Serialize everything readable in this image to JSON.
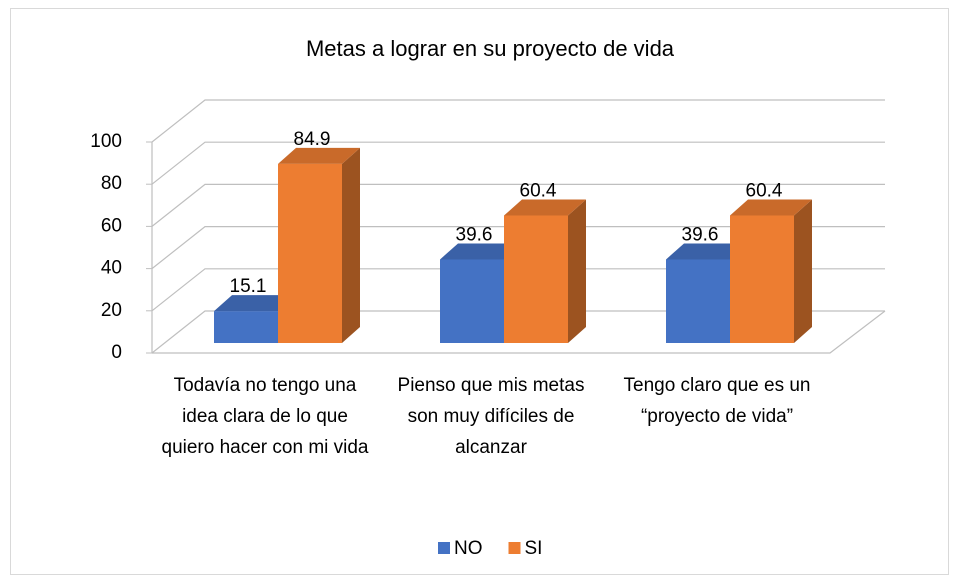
{
  "chart_data": {
    "type": "bar3d",
    "title": "Metas a lograr en su proyecto de vida",
    "categories": [
      "Todavía no tengo una idea clara de lo que quiero hacer con mi vida",
      "Pienso que mis metas son muy difíciles de alcanzar",
      "Tengo claro que es un “proyecto de vida”"
    ],
    "series": [
      {
        "name": "NO",
        "color": "#4472c4",
        "values": [
          15.1,
          39.6,
          39.6
        ]
      },
      {
        "name": "SI",
        "color": "#ed7d31",
        "values": [
          84.9,
          60.4,
          60.4
        ]
      }
    ],
    "ylim": [
      0,
      100
    ],
    "yticks": [
      0,
      20,
      40,
      60,
      80,
      100
    ],
    "grid": true,
    "legend": "bottom"
  }
}
